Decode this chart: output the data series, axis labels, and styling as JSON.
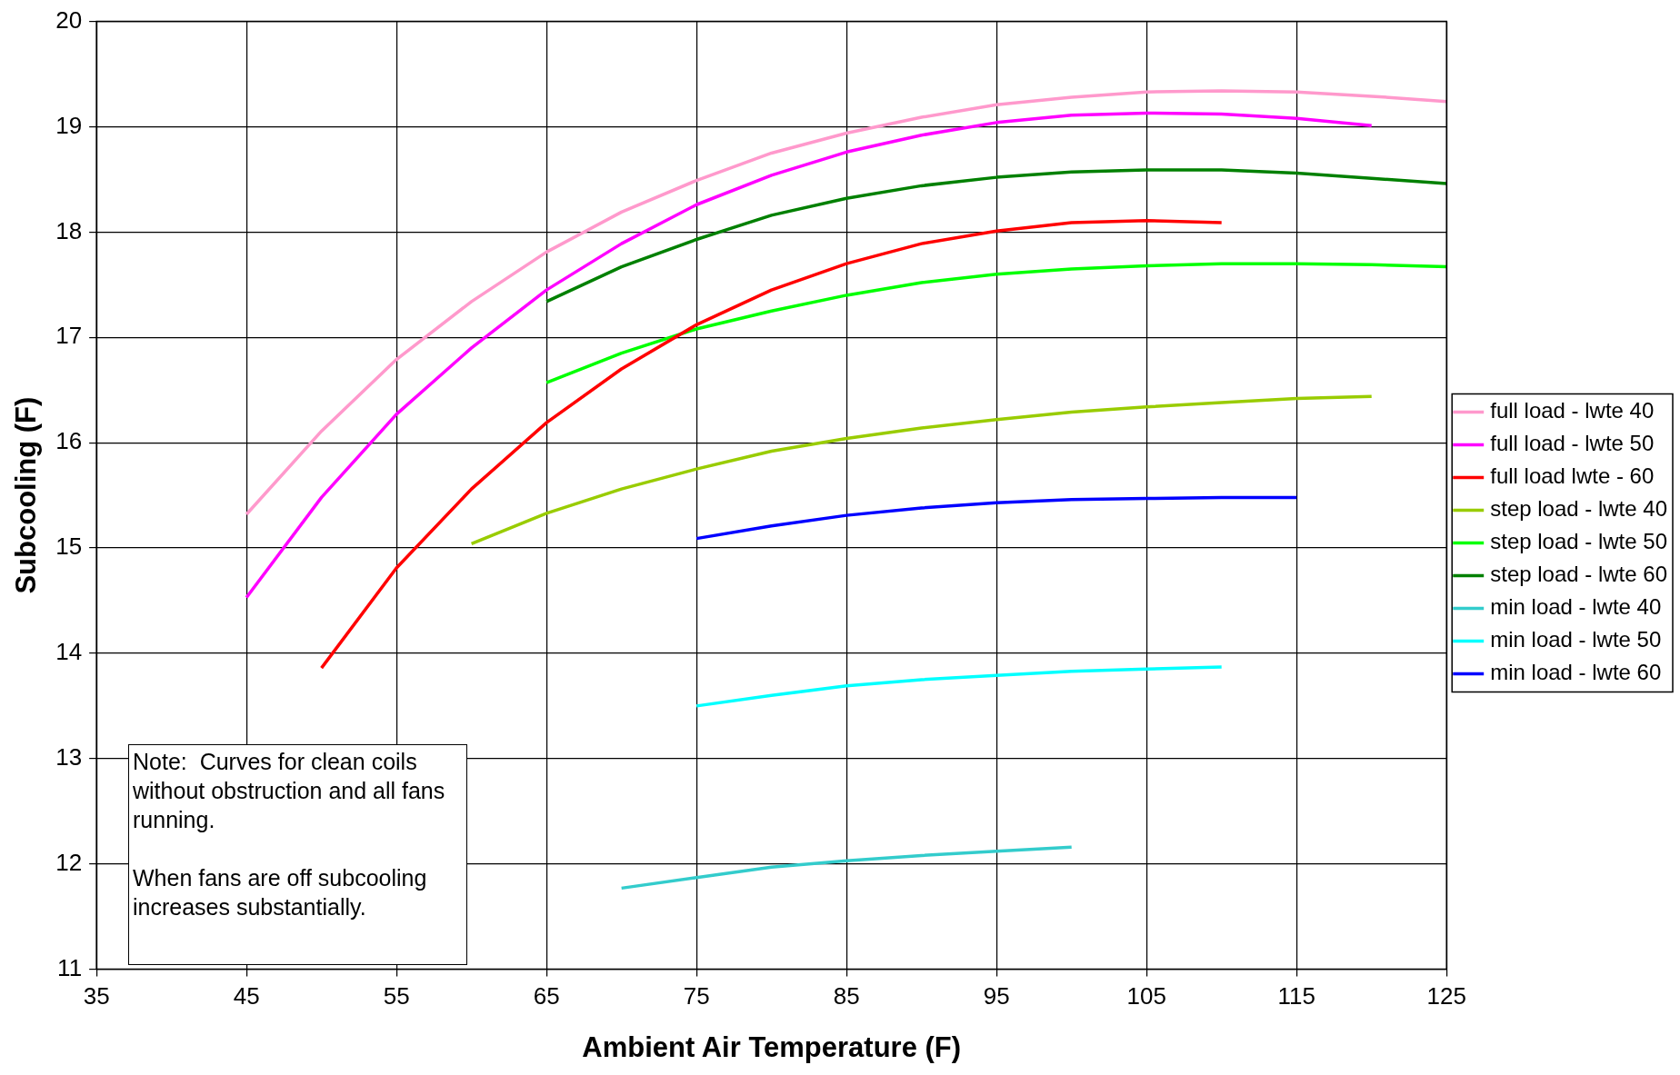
{
  "chart_data": {
    "type": "line",
    "xlabel": "Ambient Air Temperature (F)",
    "ylabel": "Subcooling (F)",
    "xlim": [
      35,
      125
    ],
    "xticks": [
      35,
      45,
      55,
      65,
      75,
      85,
      95,
      105,
      115,
      125
    ],
    "ylim": [
      11,
      20
    ],
    "yticks": [
      11,
      12,
      13,
      14,
      15,
      16,
      17,
      18,
      19,
      20
    ],
    "grid": true,
    "legend": "right",
    "marker": "none",
    "line_style": "solid",
    "annotations": [
      "Note:  Curves for clean coils without obstruction and all fans running.\n\nWhen fans are off subcooling increases substantially."
    ],
    "series": [
      {
        "name": "full load - lwte 40",
        "color": "#ff99cc",
        "x": [
          45,
          50,
          55,
          60,
          65,
          70,
          75,
          80,
          85,
          90,
          95,
          100,
          105,
          110,
          115,
          120,
          125
        ],
        "values": [
          15.32,
          16.11,
          16.79,
          17.34,
          17.81,
          18.19,
          18.49,
          18.75,
          18.94,
          19.09,
          19.21,
          19.28,
          19.33,
          19.34,
          19.33,
          19.29,
          19.24
        ]
      },
      {
        "name": "full load - lwte 50",
        "color": "#ff00ff",
        "x": [
          45,
          50,
          55,
          60,
          65,
          70,
          75,
          80,
          85,
          90,
          95,
          100,
          105,
          110,
          115,
          120
        ],
        "values": [
          14.53,
          15.48,
          16.27,
          16.9,
          17.45,
          17.89,
          18.26,
          18.54,
          18.76,
          18.92,
          19.04,
          19.11,
          19.13,
          19.12,
          19.08,
          19.01
        ]
      },
      {
        "name": "full load lwte - 60",
        "color": "#ff0000",
        "x": [
          50,
          55,
          60,
          65,
          70,
          75,
          80,
          85,
          90,
          95,
          100,
          105,
          110
        ],
        "values": [
          13.86,
          14.81,
          15.56,
          16.19,
          16.7,
          17.12,
          17.45,
          17.7,
          17.89,
          18.01,
          18.09,
          18.11,
          18.09
        ]
      },
      {
        "name": "step load - lwte 40",
        "color": "#99cc00",
        "x": [
          60,
          65,
          70,
          75,
          80,
          85,
          90,
          95,
          100,
          105,
          110,
          115,
          120
        ],
        "values": [
          15.04,
          15.33,
          15.56,
          15.75,
          15.92,
          16.04,
          16.14,
          16.22,
          16.29,
          16.34,
          16.38,
          16.42,
          16.44
        ]
      },
      {
        "name": "step load - lwte 50",
        "color": "#00ff00",
        "x": [
          65,
          70,
          75,
          80,
          85,
          90,
          95,
          100,
          105,
          110,
          115,
          120,
          125
        ],
        "values": [
          16.57,
          16.85,
          17.08,
          17.25,
          17.4,
          17.52,
          17.6,
          17.65,
          17.68,
          17.7,
          17.7,
          17.69,
          17.67
        ]
      },
      {
        "name": "step load - lwte 60",
        "color": "#008000",
        "x": [
          65,
          70,
          75,
          80,
          85,
          90,
          95,
          100,
          105,
          110,
          115,
          120,
          125
        ],
        "values": [
          17.34,
          17.67,
          17.93,
          18.16,
          18.32,
          18.44,
          18.52,
          18.57,
          18.59,
          18.59,
          18.56,
          18.51,
          18.46
        ]
      },
      {
        "name": "min load - lwte 40",
        "color": "#33cccc",
        "x": [
          70,
          75,
          80,
          85,
          90,
          95,
          100
        ],
        "values": [
          11.77,
          11.87,
          11.97,
          12.03,
          12.08,
          12.12,
          12.16
        ]
      },
      {
        "name": "min load - lwte 50",
        "color": "#00ffff",
        "x": [
          75,
          80,
          85,
          90,
          95,
          100,
          105,
          110
        ],
        "values": [
          13.5,
          13.6,
          13.69,
          13.75,
          13.79,
          13.83,
          13.85,
          13.87
        ]
      },
      {
        "name": "min load - lwte 60",
        "color": "#0000ff",
        "x": [
          75,
          80,
          85,
          90,
          95,
          100,
          105,
          110,
          115
        ],
        "values": [
          15.09,
          15.21,
          15.31,
          15.38,
          15.43,
          15.46,
          15.47,
          15.48,
          15.48
        ]
      }
    ]
  }
}
